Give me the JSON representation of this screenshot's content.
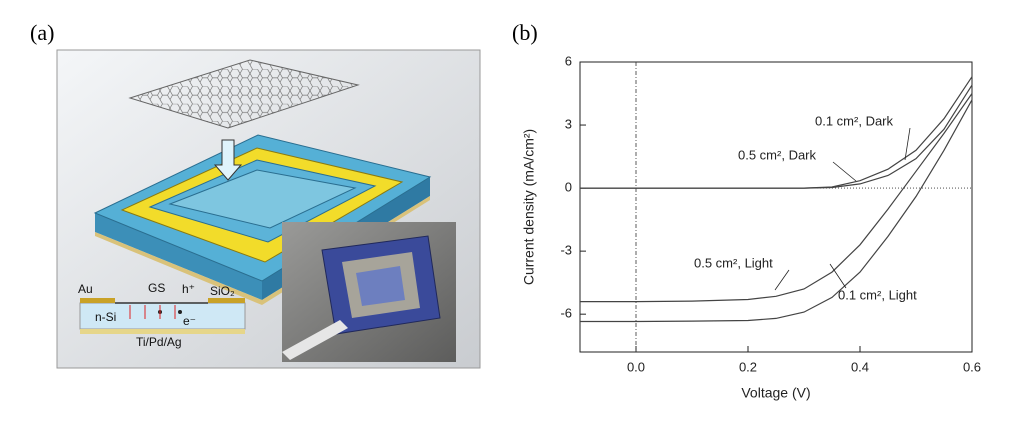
{
  "panel_a": {
    "label": "(a)",
    "cross_section": {
      "au": "Au",
      "gs": "GS",
      "hole": "h⁺",
      "oxide": "SiO₂",
      "silicon": "n-Si",
      "electron": "e⁻",
      "back_contact": "Ti/Pd/Ag"
    }
  },
  "panel_b": {
    "label": "(b)"
  },
  "chart_data": {
    "type": "line",
    "x_label": "Voltage (V)",
    "y_label": "Current density (mA/cm²)",
    "x": [
      -0.1,
      0,
      0.1,
      0.2,
      0.25,
      0.3,
      0.35,
      0.4,
      0.45,
      0.5,
      0.55,
      0.6
    ],
    "series": [
      {
        "name": "0.1 cm², Dark",
        "color": "#444444",
        "values": [
          0,
          0,
          0,
          0,
          0,
          0,
          0.05,
          0.35,
          0.9,
          1.8,
          3.3,
          5.3
        ]
      },
      {
        "name": "0.5 cm², Dark",
        "color": "#444444",
        "values": [
          0,
          0,
          0,
          0,
          0,
          0,
          0.03,
          0.2,
          0.6,
          1.4,
          2.8,
          4.9
        ]
      },
      {
        "name": "0.5 cm², Light",
        "color": "#444444",
        "values": [
          -5.4,
          -5.4,
          -5.38,
          -5.3,
          -5.15,
          -4.8,
          -4.0,
          -2.7,
          -1.0,
          0.8,
          2.6,
          4.5
        ]
      },
      {
        "name": "0.1 cm², Light",
        "color": "#444444",
        "values": [
          -6.35,
          -6.35,
          -6.33,
          -6.3,
          -6.2,
          -5.9,
          -5.2,
          -4.0,
          -2.3,
          -0.4,
          1.8,
          4.2
        ]
      }
    ],
    "xlim": [
      -0.1,
      0.6
    ],
    "ylim": [
      -7.8,
      6
    ],
    "xticks": [
      {
        "value": 0,
        "label": "0.0"
      },
      0.2,
      0.4,
      0.6
    ],
    "yticks": [
      6,
      3,
      0,
      -3,
      -6
    ]
  }
}
